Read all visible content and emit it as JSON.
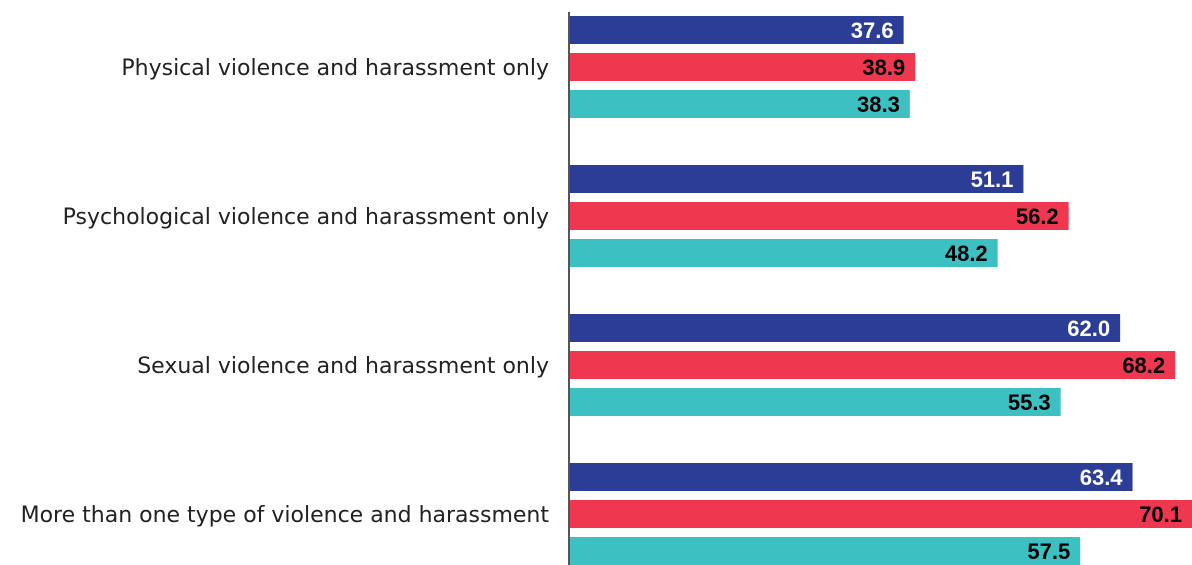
{
  "chart_data": {
    "type": "bar",
    "orientation": "horizontal",
    "categories": [
      "Physical violence and harassment only",
      "Psychological violence and harassment only",
      "Sexual violence and harassment only",
      "More than one type of violence and harassment"
    ],
    "series": [
      {
        "values": [
          37.6,
          51.1,
          62.0,
          63.4
        ],
        "color": "#2b3d97",
        "label_color": "#ffffff"
      },
      {
        "values": [
          38.9,
          56.2,
          68.2,
          70.1
        ],
        "color": "#ef374f",
        "label_color": "#000000"
      },
      {
        "values": [
          38.3,
          48.2,
          55.3,
          57.5
        ],
        "color": "#3cc0c2",
        "label_color": "#000000"
      }
    ],
    "value_labels": [
      [
        "37.6",
        "51.1",
        "62.0",
        "63.4"
      ],
      [
        "38.9",
        "56.2",
        "68.2",
        "70.1"
      ],
      [
        "38.3",
        "48.2",
        "55.3",
        "57.5"
      ]
    ],
    "xlim": [
      0,
      70.1
    ],
    "grid": false,
    "legend": "none",
    "title": "",
    "xlabel": "",
    "ylabel": ""
  }
}
